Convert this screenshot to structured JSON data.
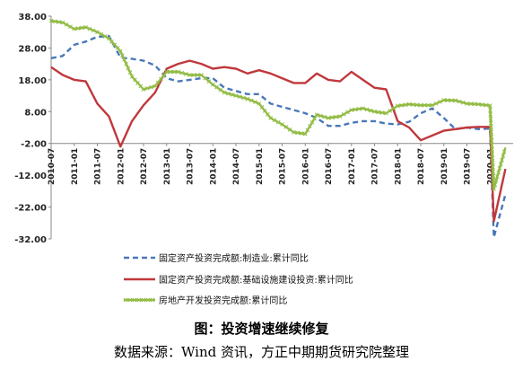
{
  "chart_data": {
    "type": "line",
    "title": "",
    "xlabel": "",
    "ylabel": "",
    "ylim": [
      -32,
      38
    ],
    "yticks": [
      "38.00",
      "28.00",
      "18.00",
      "8.00",
      "-2.00",
      "-12.00",
      "-22.00",
      "-32.00"
    ],
    "ytick_values": [
      38,
      28,
      18,
      8,
      -2,
      -12,
      -22,
      -32
    ],
    "xlim": [
      "2010-07",
      "2020-07"
    ],
    "xticks": [
      "2010-07",
      "2011-01",
      "2011-07",
      "2012-01",
      "2012-07",
      "2013-01",
      "2013-07",
      "2014-01",
      "2014-07",
      "2015-01",
      "2015-07",
      "2016-01",
      "2016-07",
      "2017-01",
      "2017-07",
      "2018-01",
      "2018-07",
      "2019-01",
      "2019-07",
      "2020-01"
    ],
    "grid": false,
    "legend_position": "bottom",
    "series": [
      {
        "name": "固定资产投资完成额:制造业:累计同比",
        "color": "#4a78b8",
        "style": "dashed",
        "points": [
          [
            "2010-07",
            24.8
          ],
          [
            "2010-10",
            25.5
          ],
          [
            "2011-01",
            29
          ],
          [
            "2011-04",
            30
          ],
          [
            "2011-07",
            31.5
          ],
          [
            "2011-10",
            31.8
          ],
          [
            "2012-01",
            25
          ],
          [
            "2012-04",
            24.6
          ],
          [
            "2012-07",
            24
          ],
          [
            "2012-10",
            22.5
          ],
          [
            "2013-01",
            18.5
          ],
          [
            "2013-04",
            17.5
          ],
          [
            "2013-07",
            18
          ],
          [
            "2013-10",
            18.5
          ],
          [
            "2014-01",
            18.5
          ],
          [
            "2014-04",
            15.5
          ],
          [
            "2014-07",
            14.5
          ],
          [
            "2014-10",
            13.5
          ],
          [
            "2015-01",
            13.5
          ],
          [
            "2015-04",
            10.5
          ],
          [
            "2015-07",
            9.5
          ],
          [
            "2015-10",
            8.5
          ],
          [
            "2016-01",
            7.5
          ],
          [
            "2016-04",
            6
          ],
          [
            "2016-07",
            3.5
          ],
          [
            "2016-10",
            3.5
          ],
          [
            "2017-01",
            4.5
          ],
          [
            "2017-04",
            5
          ],
          [
            "2017-07",
            5
          ],
          [
            "2017-10",
            4.2
          ],
          [
            "2018-01",
            4
          ],
          [
            "2018-04",
            4.8
          ],
          [
            "2018-07",
            7.5
          ],
          [
            "2018-10",
            9
          ],
          [
            "2019-01",
            6
          ],
          [
            "2019-04",
            2.5
          ],
          [
            "2019-07",
            3
          ],
          [
            "2019-10",
            2.5
          ],
          [
            "2020-01",
            2.7
          ],
          [
            "2020-02",
            -31.5
          ],
          [
            "2020-05",
            -18
          ]
        ]
      },
      {
        "name": "固定资产投资完成额:基础设施建设投资:累计同比",
        "color": "#c0383c",
        "style": "solid",
        "points": [
          [
            "2010-07",
            22
          ],
          [
            "2010-10",
            19.5
          ],
          [
            "2011-01",
            18
          ],
          [
            "2011-04",
            17.5
          ],
          [
            "2011-07",
            10.5
          ],
          [
            "2011-10",
            6.5
          ],
          [
            "2012-01",
            -3
          ],
          [
            "2012-04",
            5
          ],
          [
            "2012-07",
            10
          ],
          [
            "2012-10",
            14
          ],
          [
            "2013-01",
            21.5
          ],
          [
            "2013-04",
            23
          ],
          [
            "2013-07",
            24
          ],
          [
            "2013-10",
            23
          ],
          [
            "2014-01",
            21.5
          ],
          [
            "2014-04",
            22
          ],
          [
            "2014-07",
            21.5
          ],
          [
            "2014-10",
            20
          ],
          [
            "2015-01",
            21
          ],
          [
            "2015-04",
            20
          ],
          [
            "2015-07",
            18.5
          ],
          [
            "2015-10",
            17
          ],
          [
            "2016-01",
            17
          ],
          [
            "2016-04",
            20
          ],
          [
            "2016-07",
            18
          ],
          [
            "2016-10",
            17.5
          ],
          [
            "2017-01",
            20.5
          ],
          [
            "2017-04",
            18
          ],
          [
            "2017-07",
            15.5
          ],
          [
            "2017-10",
            15
          ],
          [
            "2018-01",
            5
          ],
          [
            "2018-04",
            3
          ],
          [
            "2018-07",
            -1
          ],
          [
            "2018-10",
            0.5
          ],
          [
            "2019-01",
            2
          ],
          [
            "2019-04",
            2.5
          ],
          [
            "2019-07",
            3
          ],
          [
            "2019-10",
            3.2
          ],
          [
            "2020-01",
            3.2
          ],
          [
            "2020-02",
            -26.5
          ],
          [
            "2020-05",
            -10
          ]
        ]
      },
      {
        "name": "房地产开发投资完成额:累计同比",
        "color": "#92bc45",
        "style": "solid-marker",
        "points": [
          [
            "2010-07",
            36.5
          ],
          [
            "2010-10",
            36
          ],
          [
            "2011-01",
            34
          ],
          [
            "2011-04",
            34.5
          ],
          [
            "2011-07",
            33
          ],
          [
            "2011-10",
            31
          ],
          [
            "2012-01",
            27
          ],
          [
            "2012-04",
            19
          ],
          [
            "2012-07",
            15
          ],
          [
            "2012-10",
            16
          ],
          [
            "2013-01",
            20.5
          ],
          [
            "2013-04",
            20.5
          ],
          [
            "2013-07",
            19.5
          ],
          [
            "2013-10",
            19.5
          ],
          [
            "2014-01",
            16.5
          ],
          [
            "2014-04",
            14
          ],
          [
            "2014-07",
            13
          ],
          [
            "2014-10",
            12
          ],
          [
            "2015-01",
            10.5
          ],
          [
            "2015-04",
            6
          ],
          [
            "2015-07",
            4
          ],
          [
            "2015-10",
            1.5
          ],
          [
            "2016-01",
            1
          ],
          [
            "2016-04",
            7
          ],
          [
            "2016-07",
            6
          ],
          [
            "2016-10",
            6.5
          ],
          [
            "2017-01",
            8.5
          ],
          [
            "2017-04",
            9
          ],
          [
            "2017-07",
            8
          ],
          [
            "2017-10",
            7.5
          ],
          [
            "2018-01",
            9.8
          ],
          [
            "2018-04",
            10.3
          ],
          [
            "2018-07",
            10
          ],
          [
            "2018-10",
            10
          ],
          [
            "2019-01",
            11.6
          ],
          [
            "2019-04",
            11.5
          ],
          [
            "2019-07",
            10.5
          ],
          [
            "2019-10",
            10.3
          ],
          [
            "2020-01",
            9.9
          ],
          [
            "2020-02",
            -16.3
          ],
          [
            "2020-05",
            -3.3
          ]
        ]
      }
    ]
  },
  "legend": [
    {
      "label": "固定资产投资完成额:制造业:累计同比",
      "color": "#4a78b8",
      "style": "dashed"
    },
    {
      "label": "固定资产投资完成额:基础设施建设投资:累计同比",
      "color": "#c0383c",
      "style": "solid"
    },
    {
      "label": "房地产开发投资完成额:累计同比",
      "color": "#92bc45",
      "style": "solid-marker"
    }
  ],
  "caption": {
    "title": "图：投资增速继续修复",
    "source": "数据来源：Wind 资讯，方正中期期货研究院整理"
  }
}
